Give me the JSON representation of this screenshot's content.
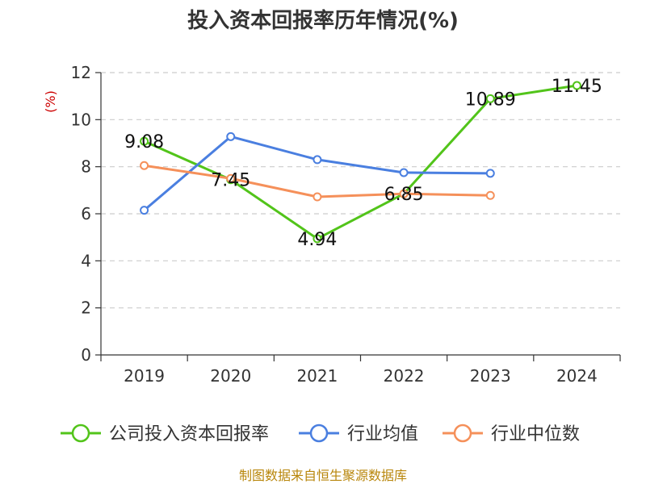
{
  "chart_data": {
    "type": "line",
    "title": "投入资本回报率历年情况(%)",
    "ylabel": "(%)",
    "xlabel": "",
    "categories": [
      "2019",
      "2020",
      "2021",
      "2022",
      "2023",
      "2024"
    ],
    "ylim": [
      0,
      12
    ],
    "yticks": [
      0,
      2,
      4,
      6,
      8,
      10,
      12
    ],
    "grid": true,
    "legend_position": "bottom",
    "series": [
      {
        "name": "公司投入资本回报率",
        "color": "#52c41a",
        "values": [
          9.08,
          7.45,
          4.94,
          6.85,
          10.89,
          11.45
        ],
        "labels": [
          "9.08",
          "7.45",
          "4.94",
          "6.85",
          "10.89",
          "11.45"
        ]
      },
      {
        "name": "行业均值",
        "color": "#4a7fe0",
        "values": [
          6.15,
          9.28,
          8.3,
          7.75,
          7.72,
          null
        ]
      },
      {
        "name": "行业中位数",
        "color": "#f5905a",
        "values": [
          8.05,
          7.5,
          6.72,
          6.85,
          6.78,
          null
        ]
      }
    ],
    "source": "制图数据来自恒生聚源数据库"
  }
}
